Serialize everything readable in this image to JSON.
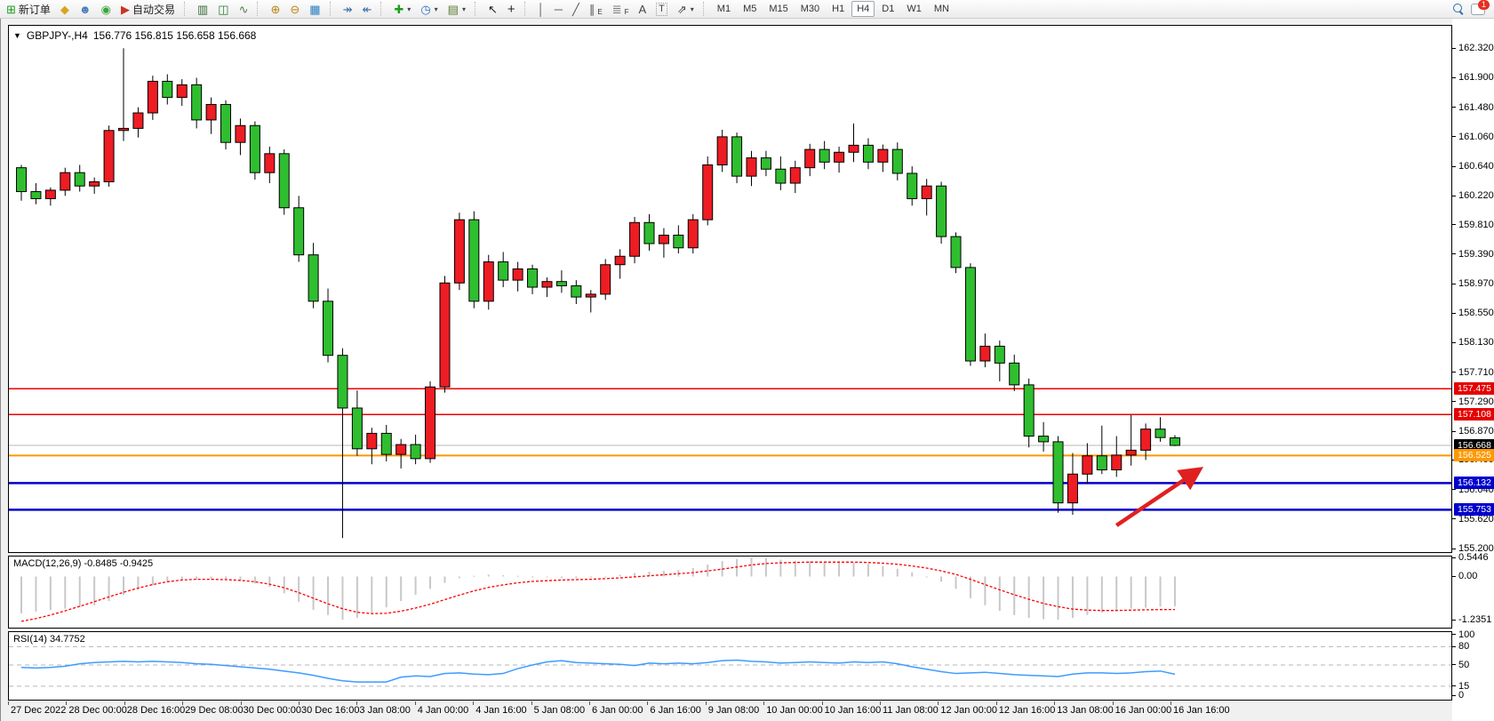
{
  "toolbar": {
    "new_order_label": "新订单",
    "auto_trading_label": "自动交易",
    "timeframes": [
      "M1",
      "M5",
      "M15",
      "M30",
      "H1",
      "H4",
      "D1",
      "W1",
      "MN"
    ],
    "active_timeframe": "H4",
    "notification_badge": "1",
    "icons": {
      "new_order": "⊞",
      "megaphone": "◆",
      "support": "☻",
      "signals": "◉",
      "autotrade": "▶",
      "bar_chart": "▥",
      "candle_chart": "◫",
      "line_chart": "∿",
      "zoom_in": "⊕",
      "zoom_out": "⊖",
      "tile_windows": "▦",
      "auto_scroll": "↠",
      "chart_shift": "↞",
      "indicators": "✚",
      "periods": "◷",
      "templates": "▤",
      "cursor": "↖",
      "crosshair": "+",
      "vertical_line": "│",
      "horizontal_line": "─",
      "trendline": "╱",
      "channel": "∥",
      "channel_sub": "E",
      "fibonacci": "≣",
      "fibonacci_sub": "F",
      "text": "A",
      "text_label": "T",
      "arrows": "⇗",
      "caret": "▾"
    }
  },
  "chart_header": {
    "symbol_period": "GBPJPY-,H4",
    "ohlc": "156.776 156.815 156.658 156.668"
  },
  "indicator_labels": {
    "macd": "MACD(12,26,9) -0.8485 -0.9425",
    "rsi": "RSI(14) 34.7752"
  },
  "price_axis": {
    "ticks": [
      "162.320",
      "161.900",
      "161.480",
      "161.060",
      "160.640",
      "160.220",
      "159.810",
      "159.390",
      "158.970",
      "158.550",
      "158.130",
      "157.710",
      "157.290",
      "156.870",
      "156.460",
      "156.040",
      "155.620",
      "155.200"
    ],
    "badges": [
      {
        "value": "157.475",
        "price": 157.475,
        "color": "#e60000"
      },
      {
        "value": "157.108",
        "price": 157.108,
        "color": "#e60000"
      },
      {
        "value": "156.668",
        "price": 156.668,
        "color": "#000000"
      },
      {
        "value": "156.525",
        "price": 156.525,
        "color": "#ff9800"
      },
      {
        "value": "156.132",
        "price": 156.132,
        "color": "#0000cc"
      },
      {
        "value": "155.753",
        "price": 155.753,
        "color": "#0000cc"
      }
    ],
    "macd_ticks": [
      "0.5446",
      "0.00",
      "-1.2351"
    ],
    "rsi_ticks": [
      "100",
      "80",
      "50",
      "15",
      "0"
    ]
  },
  "time_axis": {
    "labels": [
      "27 Dec 2022",
      "28 Dec 00:00",
      "28 Dec 16:00",
      "29 Dec 08:00",
      "30 Dec 00:00",
      "30 Dec 16:00",
      "3 Jan 08:00",
      "4 Jan 00:00",
      "4 Jan 16:00",
      "5 Jan 08:00",
      "6 Jan 00:00",
      "6 Jan 16:00",
      "9 Jan 08:00",
      "10 Jan 00:00",
      "10 Jan 16:00",
      "11 Jan 08:00",
      "12 Jan 00:00",
      "12 Jan 16:00",
      "13 Jan 08:00",
      "16 Jan 00:00",
      "16 Jan 16:00"
    ]
  },
  "chart_data": [
    {
      "type": "candlestick",
      "title": "GBPJPY- H4",
      "ylim": [
        155.15,
        162.64
      ],
      "colors": {
        "up": "#ee1c23",
        "down": "#2fbe2f",
        "wick": "#000000",
        "current_price_line": "#b8b8b8"
      },
      "layout": {
        "x0": 14,
        "step": 16.43,
        "body_width": 11,
        "grid": false
      },
      "current_price": 156.668,
      "hlines": [
        {
          "price": 157.475,
          "color": "#f00000",
          "width": 1.5
        },
        {
          "price": 157.108,
          "color": "#f00000",
          "width": 1.5
        },
        {
          "price": 156.525,
          "color": "#ff9800",
          "width": 2
        },
        {
          "price": 156.132,
          "color": "#0000cc",
          "width": 2.5
        },
        {
          "price": 155.753,
          "color": "#0000cc",
          "width": 2.5
        }
      ],
      "arrow": {
        "from_index": 75,
        "from_price": 155.53,
        "to_index": 80.5,
        "to_price": 156.3,
        "color": "#e02020"
      },
      "candles": [
        [
          160.62,
          160.66,
          160.15,
          160.28
        ],
        [
          160.28,
          160.4,
          160.1,
          160.18
        ],
        [
          160.18,
          160.34,
          160.08,
          160.3
        ],
        [
          160.3,
          160.62,
          160.22,
          160.55
        ],
        [
          160.55,
          160.66,
          160.28,
          160.36
        ],
        [
          160.36,
          160.48,
          160.25,
          160.42
        ],
        [
          160.42,
          161.22,
          160.35,
          161.15
        ],
        [
          161.15,
          162.32,
          161.0,
          161.18
        ],
        [
          161.18,
          161.48,
          161.05,
          161.4
        ],
        [
          161.4,
          161.93,
          161.3,
          161.85
        ],
        [
          161.85,
          161.95,
          161.52,
          161.62
        ],
        [
          161.62,
          161.88,
          161.5,
          161.8
        ],
        [
          161.8,
          161.9,
          161.18,
          161.3
        ],
        [
          161.3,
          161.62,
          161.1,
          161.52
        ],
        [
          161.52,
          161.58,
          160.88,
          160.98
        ],
        [
          160.98,
          161.32,
          160.8,
          161.22
        ],
        [
          161.22,
          161.28,
          160.45,
          160.55
        ],
        [
          160.55,
          160.92,
          160.4,
          160.82
        ],
        [
          160.82,
          160.88,
          159.95,
          160.05
        ],
        [
          160.05,
          160.22,
          159.28,
          159.38
        ],
        [
          159.38,
          159.55,
          158.62,
          158.72
        ],
        [
          158.72,
          158.9,
          157.85,
          157.95
        ],
        [
          157.95,
          158.05,
          155.35,
          157.2
        ],
        [
          157.2,
          157.45,
          156.52,
          156.62
        ],
        [
          156.62,
          156.92,
          156.4,
          156.84
        ],
        [
          156.84,
          156.96,
          156.44,
          156.54
        ],
        [
          156.54,
          156.76,
          156.34,
          156.68
        ],
        [
          156.68,
          156.82,
          156.4,
          156.48
        ],
        [
          156.48,
          157.58,
          156.42,
          157.5
        ],
        [
          157.5,
          159.08,
          157.42,
          158.98
        ],
        [
          158.98,
          159.98,
          158.88,
          159.88
        ],
        [
          159.88,
          160.0,
          158.62,
          158.72
        ],
        [
          158.72,
          159.38,
          158.6,
          159.28
        ],
        [
          159.28,
          159.42,
          158.92,
          159.02
        ],
        [
          159.02,
          159.28,
          158.86,
          159.18
        ],
        [
          159.18,
          159.24,
          158.82,
          158.92
        ],
        [
          158.92,
          159.06,
          158.78,
          159.0
        ],
        [
          159.0,
          159.16,
          158.84,
          158.94
        ],
        [
          158.94,
          159.02,
          158.68,
          158.78
        ],
        [
          158.78,
          158.88,
          158.56,
          158.82
        ],
        [
          158.82,
          159.32,
          158.74,
          159.24
        ],
        [
          159.24,
          159.46,
          159.04,
          159.36
        ],
        [
          159.36,
          159.92,
          159.26,
          159.84
        ],
        [
          159.84,
          159.96,
          159.44,
          159.54
        ],
        [
          159.54,
          159.76,
          159.34,
          159.66
        ],
        [
          159.66,
          159.8,
          159.4,
          159.48
        ],
        [
          159.48,
          159.96,
          159.4,
          159.88
        ],
        [
          159.88,
          160.78,
          159.8,
          160.66
        ],
        [
          160.66,
          161.16,
          160.56,
          161.06
        ],
        [
          161.06,
          161.12,
          160.4,
          160.5
        ],
        [
          160.5,
          160.86,
          160.36,
          160.76
        ],
        [
          160.76,
          160.86,
          160.5,
          160.6
        ],
        [
          160.6,
          160.78,
          160.3,
          160.4
        ],
        [
          160.4,
          160.72,
          160.26,
          160.62
        ],
        [
          160.62,
          160.96,
          160.5,
          160.88
        ],
        [
          160.88,
          161.0,
          160.6,
          160.7
        ],
        [
          160.7,
          160.92,
          160.55,
          160.84
        ],
        [
          160.84,
          161.25,
          160.7,
          160.94
        ],
        [
          160.94,
          161.04,
          160.6,
          160.7
        ],
        [
          160.7,
          160.95,
          160.56,
          160.88
        ],
        [
          160.88,
          160.98,
          160.44,
          160.54
        ],
        [
          160.54,
          160.64,
          160.08,
          160.18
        ],
        [
          160.18,
          160.46,
          159.94,
          160.36
        ],
        [
          160.36,
          160.42,
          159.54,
          159.64
        ],
        [
          159.64,
          159.7,
          159.12,
          159.2
        ],
        [
          159.2,
          159.26,
          157.8,
          157.87
        ],
        [
          157.87,
          158.26,
          157.78,
          158.08
        ],
        [
          158.08,
          158.16,
          157.58,
          157.84
        ],
        [
          157.84,
          157.96,
          157.44,
          157.53
        ],
        [
          157.53,
          157.62,
          156.64,
          156.8
        ],
        [
          156.8,
          157.0,
          156.58,
          156.72
        ],
        [
          156.72,
          156.8,
          155.71,
          155.85
        ],
        [
          155.85,
          156.56,
          155.68,
          156.26
        ],
        [
          156.26,
          156.7,
          156.12,
          156.52
        ],
        [
          156.52,
          156.95,
          156.26,
          156.32
        ],
        [
          156.32,
          156.8,
          156.22,
          156.53
        ],
        [
          156.53,
          157.1,
          156.38,
          156.6
        ],
        [
          156.6,
          156.98,
          156.46,
          156.9
        ],
        [
          156.9,
          157.07,
          156.72,
          156.78
        ],
        [
          156.776,
          156.815,
          156.658,
          156.668
        ]
      ]
    },
    {
      "type": "bar",
      "name": "MACD(12,26,9)",
      "ylim": [
        -1.46,
        0.57
      ],
      "bar_color": "#c8c8c8",
      "signal_color": "#ff0000",
      "values": [
        -1.05,
        -1.0,
        -0.96,
        -0.92,
        -0.88,
        -0.82,
        -0.7,
        -0.52,
        -0.38,
        -0.25,
        -0.15,
        -0.1,
        -0.08,
        -0.07,
        -0.09,
        -0.13,
        -0.2,
        -0.3,
        -0.48,
        -0.72,
        -0.95,
        -1.1,
        -1.2351,
        -1.18,
        -1.05,
        -0.88,
        -0.7,
        -0.52,
        -0.35,
        -0.18,
        -0.05,
        0.02,
        0.05,
        0.04,
        0.02,
        0.0,
        -0.02,
        -0.04,
        -0.05,
        -0.04,
        0.0,
        0.05,
        0.1,
        0.14,
        0.16,
        0.18,
        0.24,
        0.34,
        0.44,
        0.5,
        0.5446,
        0.52,
        0.48,
        0.45,
        0.44,
        0.42,
        0.4,
        0.4,
        0.36,
        0.3,
        0.22,
        0.12,
        0.0,
        -0.15,
        -0.35,
        -0.62,
        -0.82,
        -0.98,
        -1.1,
        -1.18,
        -1.22,
        -1.23,
        -1.18,
        -1.1,
        -1.03,
        -0.97,
        -0.92,
        -0.89,
        -0.86,
        -0.8485
      ],
      "signal": [
        -1.28,
        -1.2,
        -1.1,
        -0.98,
        -0.85,
        -0.72,
        -0.58,
        -0.45,
        -0.33,
        -0.23,
        -0.15,
        -0.1,
        -0.08,
        -0.08,
        -0.09,
        -0.11,
        -0.15,
        -0.22,
        -0.32,
        -0.46,
        -0.62,
        -0.78,
        -0.92,
        -1.02,
        -1.06,
        -1.05,
        -0.99,
        -0.9,
        -0.79,
        -0.66,
        -0.53,
        -0.41,
        -0.31,
        -0.24,
        -0.18,
        -0.14,
        -0.12,
        -0.1,
        -0.09,
        -0.08,
        -0.06,
        -0.04,
        -0.01,
        0.02,
        0.05,
        0.08,
        0.11,
        0.16,
        0.21,
        0.27,
        0.33,
        0.37,
        0.39,
        0.4,
        0.41,
        0.41,
        0.41,
        0.41,
        0.4,
        0.38,
        0.35,
        0.3,
        0.24,
        0.16,
        0.06,
        -0.08,
        -0.23,
        -0.38,
        -0.52,
        -0.65,
        -0.77,
        -0.86,
        -0.93,
        -0.96,
        -0.97,
        -0.97,
        -0.96,
        -0.95,
        -0.945,
        -0.9425
      ]
    },
    {
      "type": "line",
      "name": "RSI(14)",
      "ylim": [
        -7,
        104
      ],
      "line_color": "#3e9bff",
      "dashed_levels": [
        80,
        50,
        15
      ],
      "values": [
        46,
        45,
        46,
        48,
        52,
        54,
        55,
        56,
        55,
        56,
        55,
        54,
        52,
        51,
        49,
        47,
        45,
        43,
        40,
        37,
        33,
        28,
        24,
        22,
        22,
        22,
        30,
        32,
        31,
        36,
        37,
        35,
        34,
        36,
        44,
        50,
        55,
        57,
        54,
        53,
        52,
        51,
        49,
        53,
        52,
        53,
        52,
        54,
        57,
        58,
        56,
        55,
        53,
        54,
        55,
        54,
        53,
        55,
        54,
        55,
        52,
        47,
        43,
        39,
        36,
        37,
        38,
        36,
        34,
        33,
        32,
        31,
        35,
        37,
        37,
        36,
        37,
        39,
        40,
        34.78
      ]
    }
  ]
}
